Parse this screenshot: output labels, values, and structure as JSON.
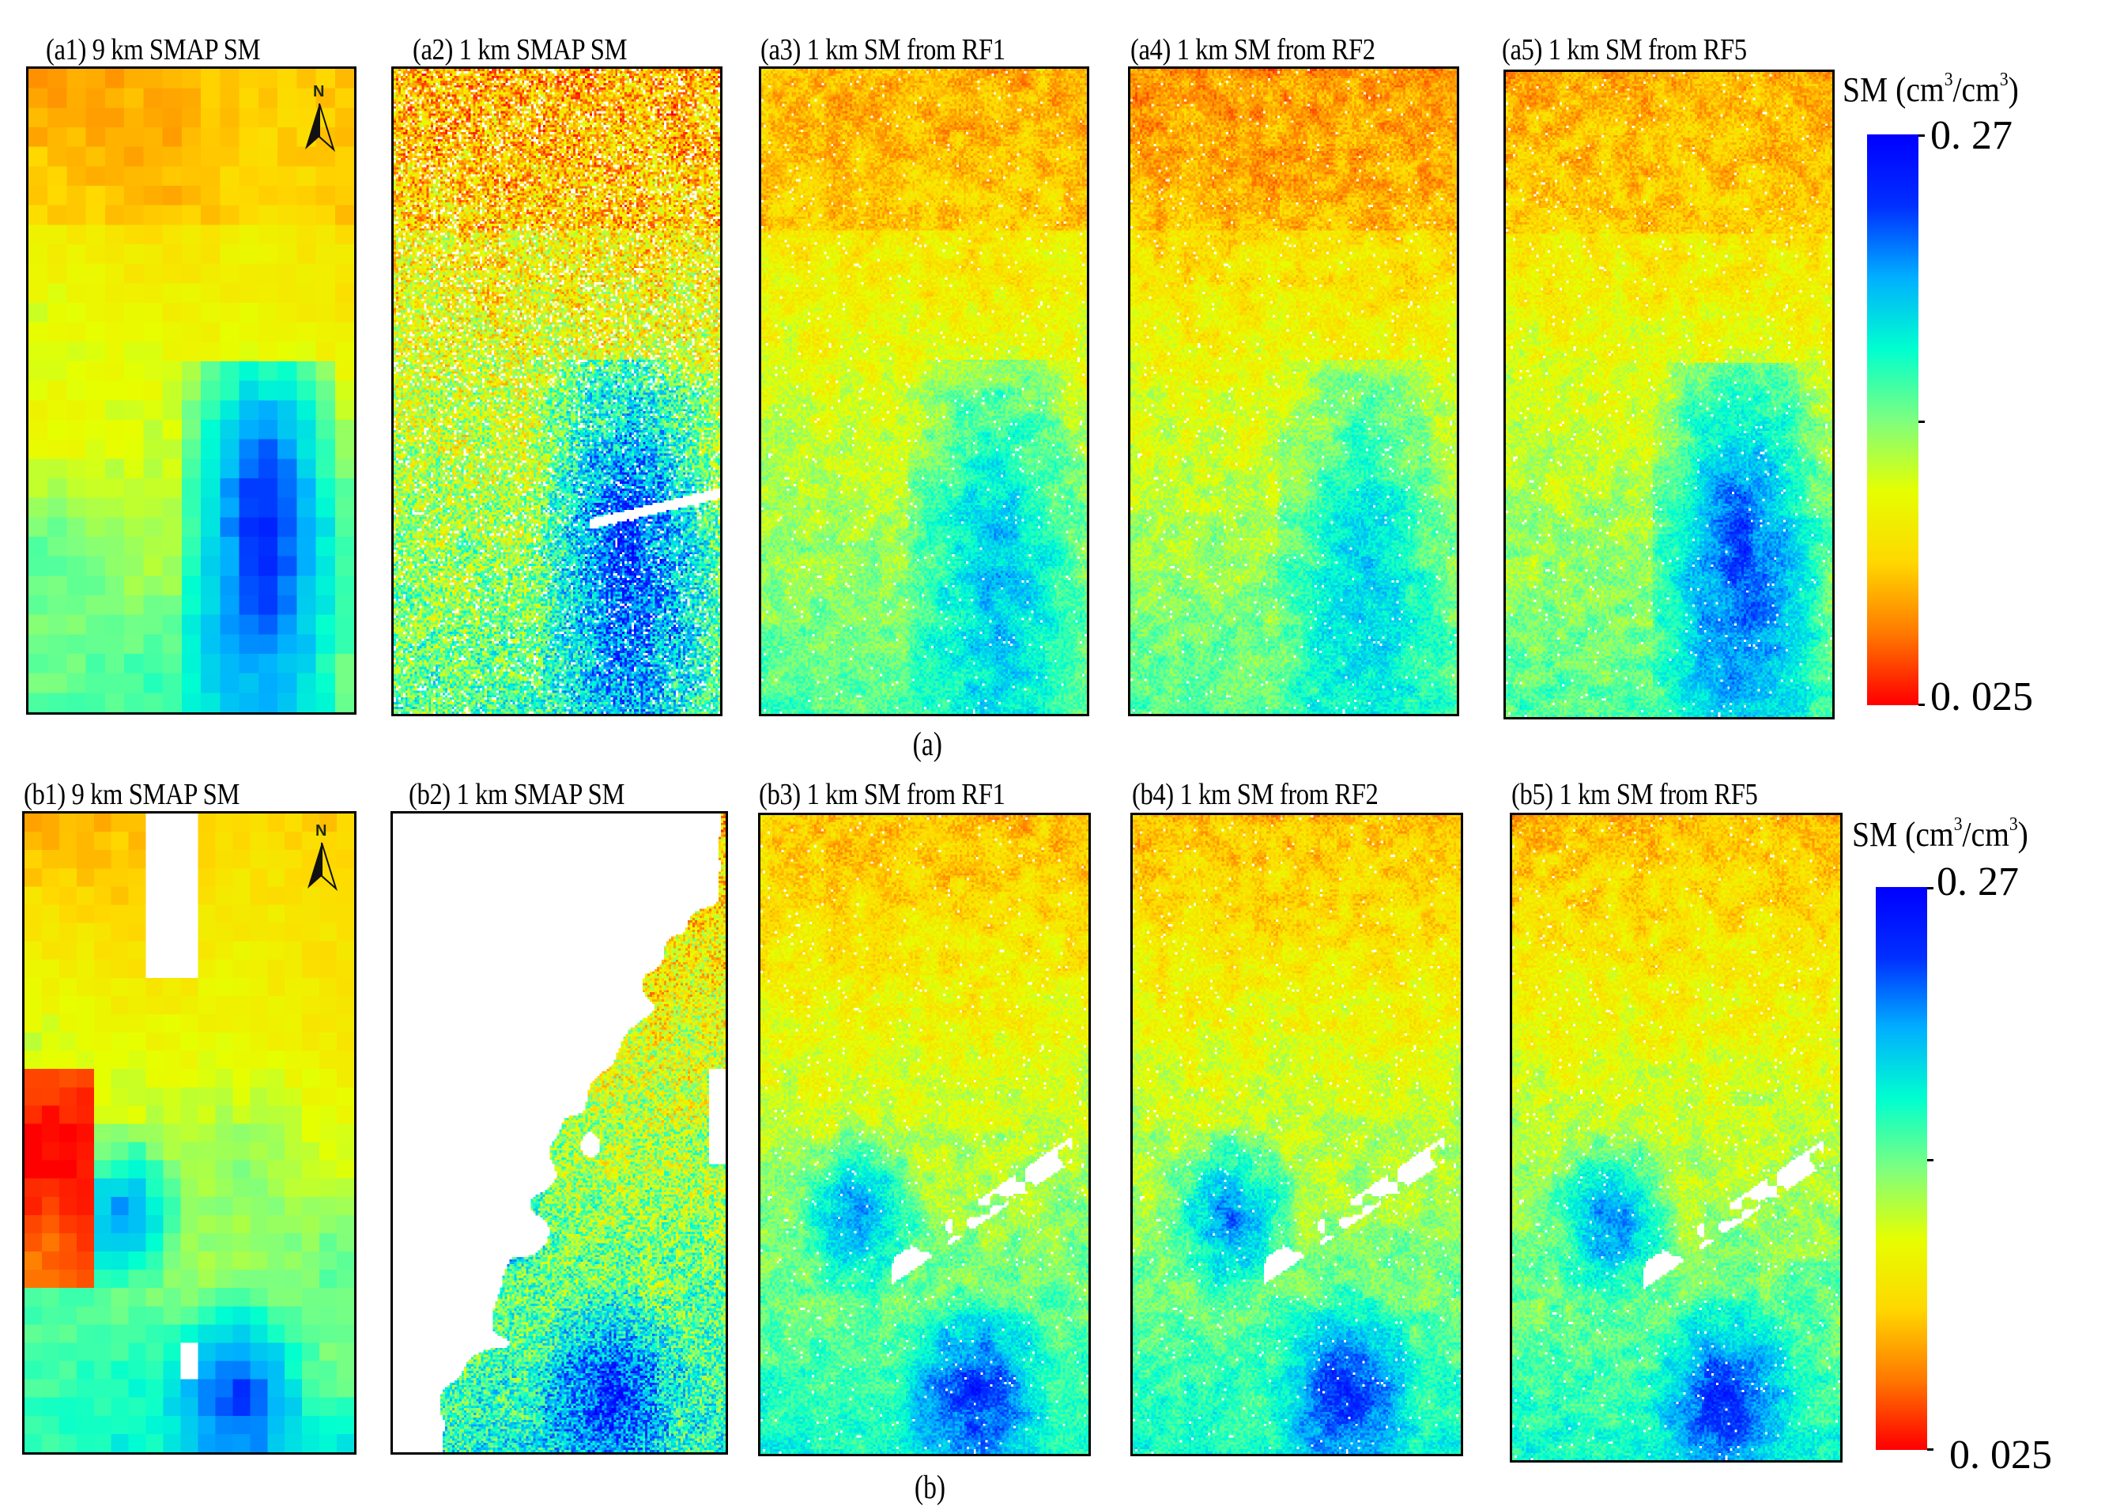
{
  "figure": {
    "rows": [
      {
        "id": "a",
        "caption": "(a)",
        "panels": [
          {
            "id": "a1",
            "title": "(a1) 9 km  SMAP SM",
            "resolution": "9 km",
            "source": "SMAP SM",
            "north_arrow": true
          },
          {
            "id": "a2",
            "title": "(a2) 1 km  SMAP SM",
            "resolution": "1 km",
            "source": "SMAP SM",
            "north_arrow": false
          },
          {
            "id": "a3",
            "title": "(a3) 1 km  SM from RF1",
            "resolution": "1 km",
            "source": "SM from RF1",
            "north_arrow": false
          },
          {
            "id": "a4",
            "title": "(a4) 1 km  SM from RF2",
            "resolution": "1 km",
            "source": "SM from RF2",
            "north_arrow": false
          },
          {
            "id": "a5",
            "title": "(a5) 1 km  SM from RF5",
            "resolution": "1 km",
            "source": "SM from RF5",
            "north_arrow": false
          }
        ],
        "colorbar": {
          "title_prefix": "SM (cm",
          "title_sup1": "3",
          "title_mid": "/cm",
          "title_sup2": "3",
          "title_suffix": ")",
          "max_label": "0. 27",
          "min_label": "0. 025"
        }
      },
      {
        "id": "b",
        "caption": "(b)",
        "panels": [
          {
            "id": "b1",
            "title": "(b1) 9 km  SMAP SM",
            "resolution": "9 km",
            "source": "SMAP SM",
            "north_arrow": true
          },
          {
            "id": "b2",
            "title": "(b2) 1 km  SMAP SM",
            "resolution": "1 km",
            "source": "SMAP SM",
            "north_arrow": false
          },
          {
            "id": "b3",
            "title": "(b3) 1 km  SM from RF1",
            "resolution": "1 km",
            "source": "SM from RF1",
            "north_arrow": false
          },
          {
            "id": "b4",
            "title": "(b4) 1 km  SM from RF2",
            "resolution": "1 km",
            "source": "SM from RF2",
            "north_arrow": false
          },
          {
            "id": "b5",
            "title": "(b5) 1 km  SM from RF5",
            "resolution": "1 km",
            "source": "SM from RF5",
            "north_arrow": false
          }
        ],
        "colorbar": {
          "title_prefix": "SM (cm",
          "title_sup1": "3",
          "title_mid": "/cm",
          "title_sup2": "3",
          "title_suffix": ")",
          "max_label": "0. 27",
          "min_label": "0. 025"
        }
      }
    ],
    "north_label": "N"
  },
  "chart_data": {
    "type": "heatmap",
    "title": "Soil moisture maps: 9 km SMAP, 1 km SMAP and 1 km downscaled SM from RF1/RF2/RF5",
    "colorbar": {
      "label": "SM (cm3/cm3)",
      "min": 0.025,
      "max": 0.27,
      "colormap": "jet-like (red-orange-yellow-green-cyan-blue)",
      "ticks": [
        0.025,
        0.1475,
        0.27
      ],
      "tick_labels": [
        "0. 025",
        "",
        "0. 27"
      ]
    },
    "colormap_stops": [
      "#ff0000",
      "#ff7a00",
      "#ffd800",
      "#e6ff00",
      "#7dff80",
      "#00ffd0",
      "#00b0ff",
      "#0030ff",
      "#0000ff"
    ],
    "row_captions": [
      "(a)",
      "(b)"
    ],
    "panels": [
      {
        "id": "a1",
        "title": "(a1) 9 km SMAP SM",
        "pattern": "north dry (orange, ~0.07-0.10), wettest upper-left red-orange band; south-east wet zone (blue, ~0.22-0.25); south-west yellow-green (~0.13-0.16)",
        "grid": [
          17,
          33
        ]
      },
      {
        "id": "a2",
        "title": "(a2) 1 km SMAP SM",
        "pattern": "noisy; north red/orange, scattered white gaps; south-east blue wet region with diagonal white stripe",
        "grid": null
      },
      {
        "id": "a3",
        "title": "(a3) 1 km SM from RF1",
        "pattern": "north orange, central yellow, south-east cyan dendritic wet zone (~0.17-0.19)"
      },
      {
        "id": "a4",
        "title": "(a4) 1 km SM from RF2",
        "pattern": "north darker orange/red, central yellow, south-east cyan-green dendritic zone"
      },
      {
        "id": "a5",
        "title": "(a5) 1 km SM from RF5",
        "pattern": "north orange, central yellow, south-east blue-cyan wet zone (~0.20-0.22)"
      },
      {
        "id": "b1",
        "title": "(b1) 9 km SMAP SM",
        "pattern": "north orange/red with white no-data column; west red strip; south cyan-blue wet (~0.20-0.26)",
        "grid": [
          19,
          35
        ]
      },
      {
        "id": "b2",
        "title": "(b2) 1 km SMAP SM",
        "pattern": "mostly no-data (white) upper-left triangle; valid data in south-east with blue/cyan/yellow noise"
      },
      {
        "id": "b3",
        "title": "(b3) 1 km SM from RF1",
        "pattern": "north orange, middle yellow/green, dark blue patches in south-west and south-east, white gap streak"
      },
      {
        "id": "b4",
        "title": "(b4) 1 km SM from RF2",
        "pattern": "north orange-red, middle yellow-cyan, dark blue patches south"
      },
      {
        "id": "b5",
        "title": "(b5) 1 km SM from RF5",
        "pattern": "north orange, middle yellow/cyan, dark blue patches south"
      }
    ]
  }
}
